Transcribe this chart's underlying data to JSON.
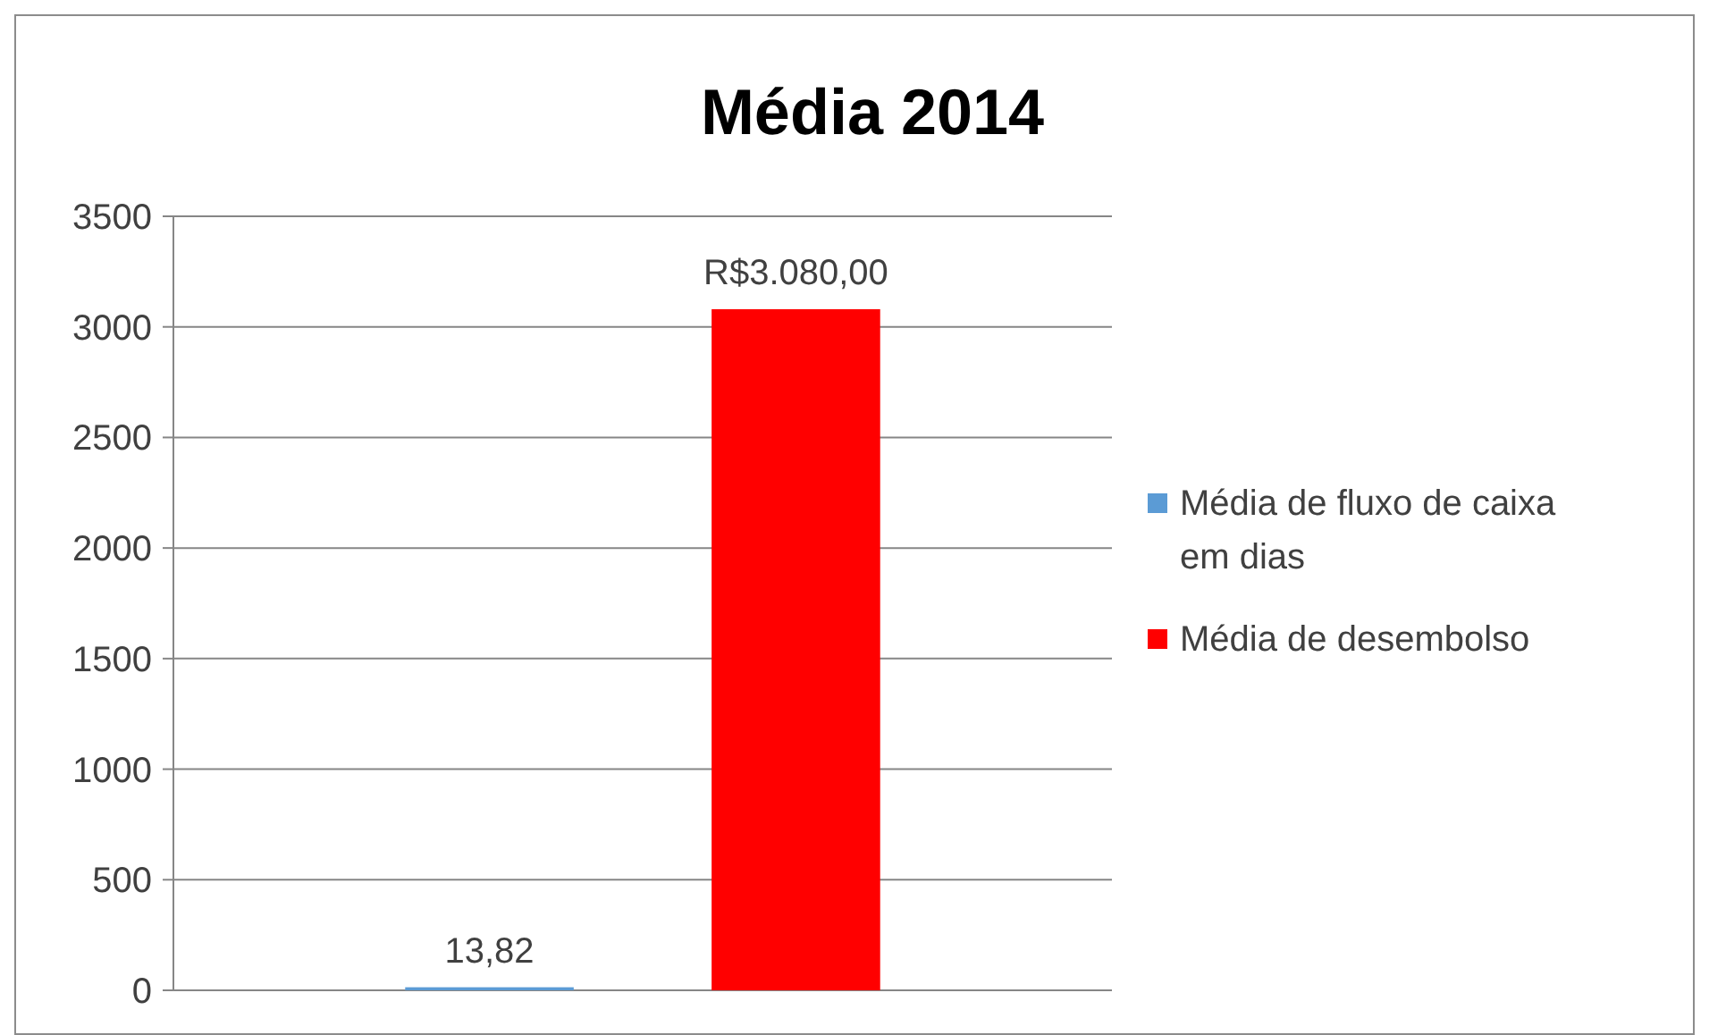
{
  "chart_data": {
    "type": "bar",
    "title": "Média 2014",
    "categories": [
      null
    ],
    "series": [
      {
        "name": "Média de fluxo de caixa em dias",
        "color": "#5b9bd5",
        "values": [
          13.82
        ],
        "value_labels": [
          "13,82"
        ]
      },
      {
        "name": "Média de desembolso",
        "color": "#ff0000",
        "values": [
          3080
        ],
        "value_labels": [
          "R$3.080,00"
        ]
      }
    ],
    "ylim": [
      0,
      3500
    ],
    "yticks": [
      0,
      500,
      1000,
      1500,
      2000,
      2500,
      3000,
      3500
    ],
    "grid": "y",
    "legend": "right"
  }
}
